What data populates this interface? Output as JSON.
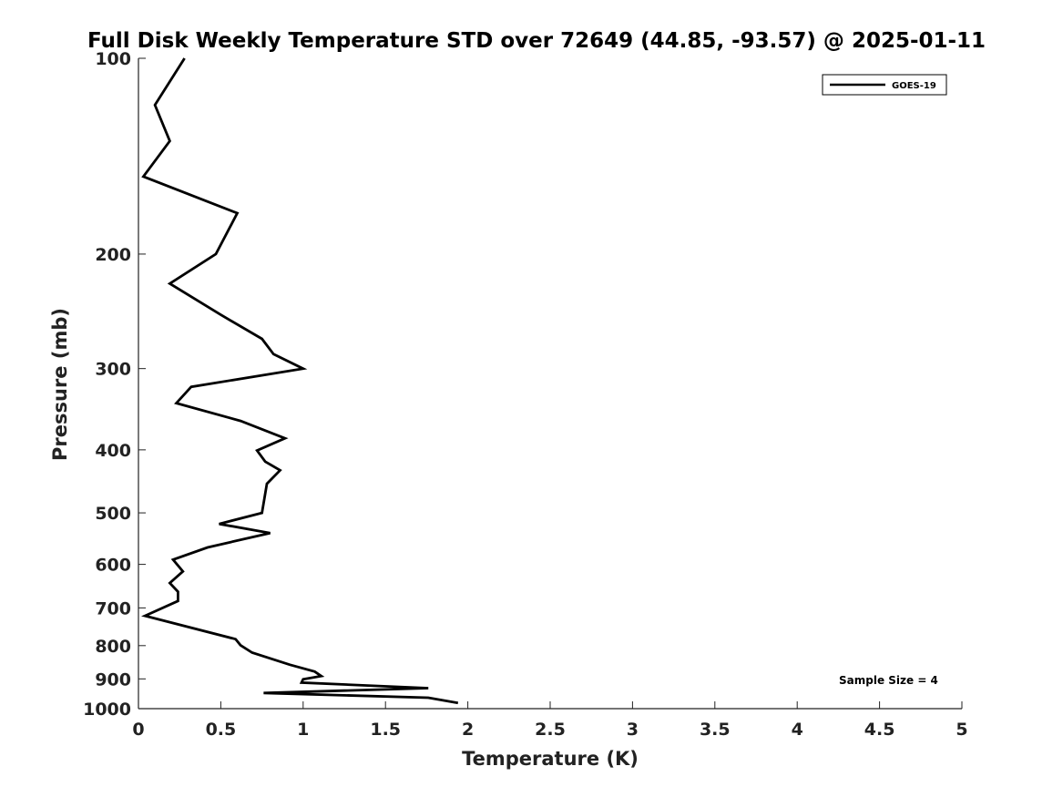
{
  "chart_data": {
    "type": "line",
    "title": "Full Disk Weekly Temperature STD over 72649 (44.85, -93.57) @ 2025-01-11",
    "xlabel": "Temperature (K)",
    "ylabel": "Pressure (mb)",
    "xlim": [
      0,
      5
    ],
    "ylim": [
      1000,
      100
    ],
    "y_scale": "log",
    "y_reversed": true,
    "x_ticks": [
      "0",
      "0.5",
      "1",
      "1.5",
      "2",
      "2.5",
      "3",
      "3.5",
      "4",
      "4.5",
      "5"
    ],
    "y_ticks": [
      "100",
      "200",
      "300",
      "400",
      "500",
      "600",
      "700",
      "800",
      "900",
      "1000"
    ],
    "grid": false,
    "legend": {
      "position": "top-right",
      "entries": [
        "GOES-19"
      ]
    },
    "annotation": "Sample Size = 4",
    "line_color": "#000000",
    "series": [
      {
        "name": "GOES-19",
        "points": [
          [
            0.28,
            100
          ],
          [
            0.1,
            118
          ],
          [
            0.19,
            134
          ],
          [
            0.03,
            152
          ],
          [
            0.6,
            173
          ],
          [
            0.47,
            200
          ],
          [
            0.19,
            222
          ],
          [
            0.5,
            248
          ],
          [
            0.75,
            270
          ],
          [
            0.82,
            285
          ],
          [
            1.0,
            300
          ],
          [
            0.32,
            320
          ],
          [
            0.23,
            339
          ],
          [
            0.62,
            361
          ],
          [
            0.89,
            384
          ],
          [
            0.72,
            401
          ],
          [
            0.77,
            417
          ],
          [
            0.86,
            430
          ],
          [
            0.78,
            451
          ],
          [
            0.75,
            500
          ],
          [
            0.49,
            520
          ],
          [
            0.8,
            537
          ],
          [
            0.42,
            565
          ],
          [
            0.21,
            590
          ],
          [
            0.27,
            615
          ],
          [
            0.19,
            641
          ],
          [
            0.24,
            661
          ],
          [
            0.24,
            683
          ],
          [
            0.04,
            720
          ],
          [
            0.59,
            782
          ],
          [
            0.62,
            799
          ],
          [
            0.69,
            820
          ],
          [
            0.92,
            856
          ],
          [
            1.07,
            877
          ],
          [
            1.11,
            891
          ],
          [
            1.0,
            901
          ],
          [
            0.99,
            912
          ],
          [
            1.76,
            930
          ],
          [
            0.76,
            946
          ],
          [
            1.76,
            962
          ],
          [
            1.94,
            980
          ]
        ]
      }
    ]
  }
}
